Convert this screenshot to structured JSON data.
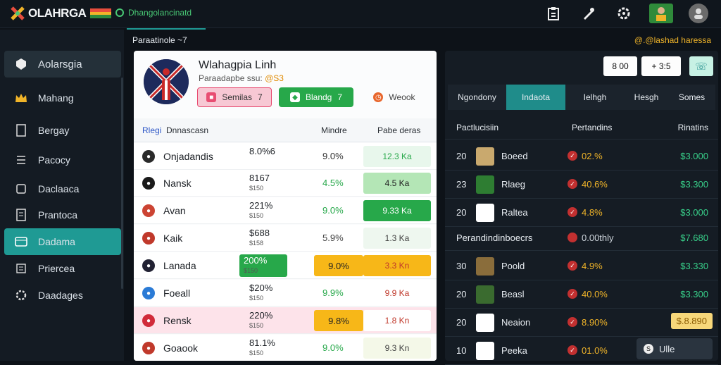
{
  "topbar": {
    "logo_text": "OLAHRGA",
    "tagline": "Dhangolancinatd",
    "icons": [
      "clipboard-icon",
      "whistle-icon",
      "settings-icon",
      "flag-avatar",
      "user-avatar"
    ]
  },
  "sidebar": {
    "items": [
      {
        "label": "Aolarsgia",
        "icon": "shield-icon"
      },
      {
        "label": "Mahang",
        "icon": "crown-icon"
      },
      {
        "label": "Bergay",
        "icon": "document-icon"
      },
      {
        "label": "Pacocy",
        "icon": "list-icon"
      },
      {
        "label": "Daclaaca",
        "icon": "file-icon"
      },
      {
        "label": "Prantoca",
        "icon": "document-icon"
      },
      {
        "label": "Dadama",
        "icon": "card-icon"
      },
      {
        "label": "Priercea",
        "icon": "list-icon"
      },
      {
        "label": "Daadages",
        "icon": "settings-icon"
      }
    ],
    "active_index": 6
  },
  "breadcrumb": {
    "left": "Paraatinole ~7",
    "right": "@.@lashad haressa"
  },
  "team": {
    "title": "Wlahagpia Linh",
    "sub_prefix": "Paraadapbe ssu:",
    "sub_value": "@S3",
    "pills": [
      {
        "label": "Semilas",
        "count": "7",
        "color": "pink"
      },
      {
        "label": "Blandg",
        "count": "7",
        "color": "green"
      },
      {
        "label": "Weook",
        "count": "",
        "color": "plain"
      }
    ],
    "columns": [
      "Rlegi",
      "Dnnascasn",
      "Mindre",
      "Pabe deras"
    ],
    "rows": [
      {
        "name": "Onjadandis",
        "v1": "8.0%6",
        "v1sub": "",
        "v2": "9.0%",
        "v3": "12.3 Ka",
        "v3bg": "#e8f7ec",
        "v3color": "#27a84a",
        "ic": "#2a2a2a",
        "v2color": "#333"
      },
      {
        "name": "Nansk",
        "v1": "8167",
        "v1sub": "$150",
        "v2": "4.5%",
        "v3": "4.5 Ka",
        "v3bg": "#b4e6b6",
        "v3color": "#222",
        "ic": "#1a1a1a",
        "v2color": "#27a84a"
      },
      {
        "name": "Avan",
        "v1": "221%",
        "v1sub": "$150",
        "v2": "9.0%",
        "v3": "9.33 Ka",
        "v3bg": "#27a84a",
        "v3color": "#fff",
        "ic": "#c43",
        "v2color": "#27a84a"
      },
      {
        "name": "Kaik",
        "v1": "$688",
        "v1sub": "$158",
        "v2": "5.9%",
        "v3": "1.3 Ka",
        "v3bg": "#eef7ef",
        "v3color": "#444",
        "ic": "#c0392b",
        "v2color": "#444"
      },
      {
        "name": "Lanada",
        "v1": "200%",
        "v1sub": "$150",
        "v2": "9.0%",
        "v3": "3.3 Kn",
        "v3bg": "#f7b718",
        "v3color": "#c0392b",
        "ic": "#223",
        "v2color": "#222"
      },
      {
        "name": "Foeall",
        "v1": "$20%",
        "v1sub": "$150",
        "v2": "9.9%",
        "v3": "9.9 Ka",
        "v3bg": "#ffffff",
        "v3color": "#c0392b",
        "ic": "#2b7bd6",
        "v2color": "#27a84a"
      },
      {
        "name": "Rensk",
        "v1": "220%",
        "v1sub": "$150",
        "v2": "9.8%",
        "v3": "1.8 Kn",
        "v3bg": "#ffffff",
        "v3color": "#c0392b",
        "ic": "#d12b3a",
        "v2color": "#222"
      },
      {
        "name": "Goaook",
        "v1": "81.1%",
        "v1sub": "$150",
        "v2": "9.0%",
        "v3": "9.3 Kn",
        "v3bg": "#f4f8e8",
        "v3color": "#444",
        "ic": "#c0392b",
        "v2color": "#27a84a"
      }
    ]
  },
  "board": {
    "buttons": [
      {
        "label": "8 00"
      },
      {
        "label": "+ 3:5"
      },
      {
        "label": "phone"
      }
    ],
    "tabs": [
      "Ngondony",
      "Indaota",
      "Ielhgh",
      "Hesgh",
      "Somes"
    ],
    "active_tab": 1,
    "columns": [
      "Pactlucisiin",
      "Pertandins",
      "Rinatins"
    ],
    "rows": [
      {
        "rank": "20",
        "name": "Boeed",
        "pct": "02.%",
        "prize": "$3.000"
      },
      {
        "rank": "23",
        "name": "Rlaeg",
        "pct": "40.6%",
        "prize": "$3.300"
      },
      {
        "rank": "20",
        "name": "Raltea",
        "pct": "4.8%",
        "prize": "$3.000"
      },
      {
        "rank": "30",
        "name": "Poold",
        "pct": "4.9%",
        "prize": "$3.330"
      },
      {
        "rank": "20",
        "name": "Beasl",
        "pct": "40.0%",
        "prize": "$3.300"
      },
      {
        "rank": "20",
        "name": "Neaion",
        "pct": "8.90%",
        "prize": "$.8.890"
      },
      {
        "rank": "10",
        "name": "Peeka",
        "pct": "01.0%",
        "prize": "3.890"
      }
    ],
    "subheader": {
      "label": "Perandindinboecrs",
      "pct": "0.00thly",
      "prize": "$7.680"
    },
    "footer_chip": "Ulle"
  }
}
